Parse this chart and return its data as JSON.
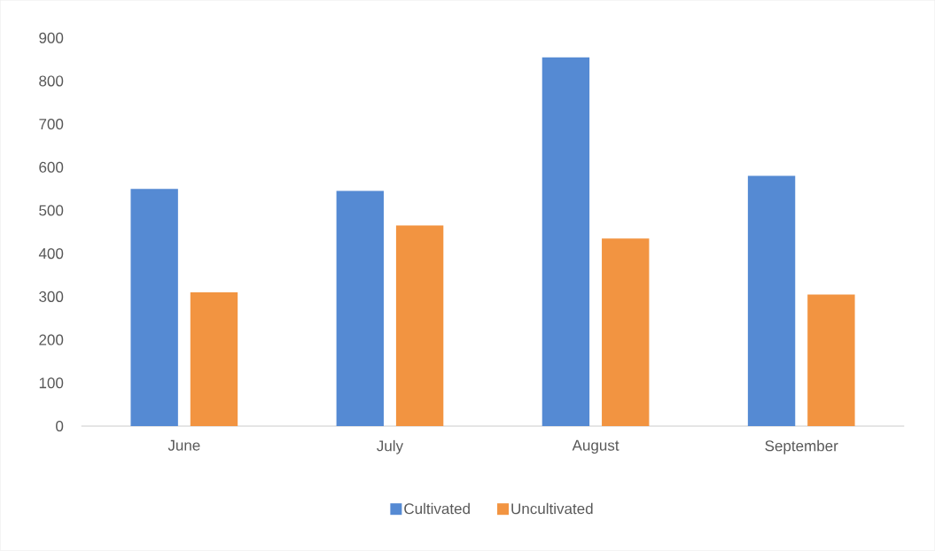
{
  "chart_data": {
    "type": "bar",
    "categories": [
      "June",
      "July",
      "August",
      "September"
    ],
    "series": [
      {
        "name": "Cultivated",
        "color": "#558ad3",
        "values": [
          550,
          545,
          855,
          580
        ]
      },
      {
        "name": "Uncultivated",
        "color": "#f29441",
        "values": [
          310,
          465,
          435,
          305
        ]
      }
    ],
    "ylim": [
      0,
      900
    ],
    "yticks": [
      0,
      100,
      200,
      300,
      400,
      500,
      600,
      700,
      800,
      900
    ],
    "legend": "bottom"
  }
}
